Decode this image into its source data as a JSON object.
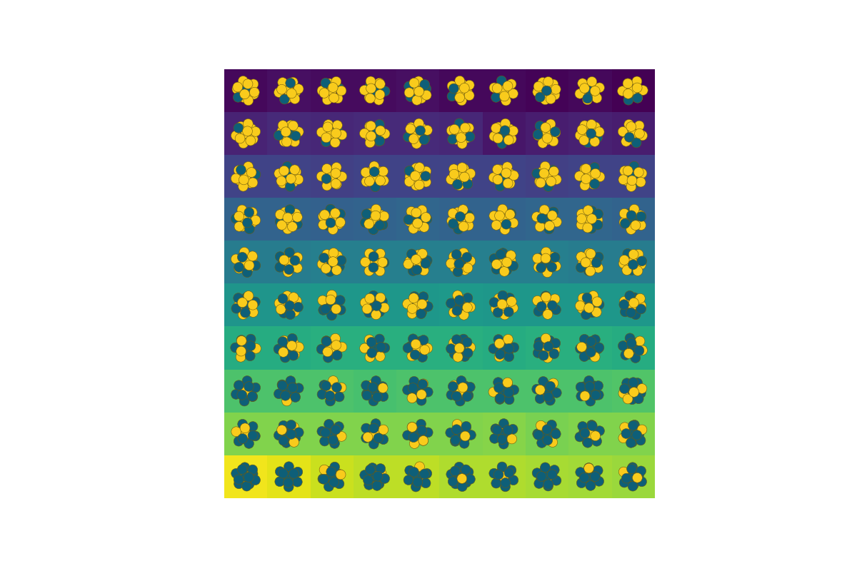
{
  "chart_data": {
    "type": "image_grid",
    "tick_labels": false,
    "value_range": [
      0,
      1
    ],
    "values": [
      [
        0.02,
        0.04,
        0.03,
        0.03,
        0.04,
        0.02,
        0.02,
        0.01,
        0.02,
        0.0
      ],
      [
        0.1,
        0.12,
        0.11,
        0.12,
        0.12,
        0.11,
        0.06,
        0.08,
        0.09,
        0.08
      ],
      [
        0.2,
        0.2,
        0.19,
        0.2,
        0.2,
        0.2,
        0.2,
        0.19,
        0.2,
        0.2
      ],
      [
        0.32,
        0.32,
        0.31,
        0.32,
        0.33,
        0.32,
        0.32,
        0.33,
        0.33,
        0.32
      ],
      [
        0.42,
        0.42,
        0.43,
        0.43,
        0.43,
        0.43,
        0.43,
        0.43,
        0.42,
        0.42
      ],
      [
        0.52,
        0.52,
        0.53,
        0.53,
        0.53,
        0.54,
        0.53,
        0.53,
        0.53,
        0.53
      ],
      [
        0.62,
        0.62,
        0.63,
        0.63,
        0.63,
        0.63,
        0.62,
        0.63,
        0.63,
        0.62
      ],
      [
        0.72,
        0.72,
        0.72,
        0.71,
        0.72,
        0.72,
        0.72,
        0.72,
        0.72,
        0.73
      ],
      [
        0.81,
        0.81,
        0.81,
        0.81,
        0.81,
        0.81,
        0.82,
        0.8,
        0.81,
        0.81
      ],
      [
        0.98,
        0.96,
        0.92,
        0.9,
        0.9,
        0.88,
        0.88,
        0.87,
        0.86,
        0.85
      ]
    ],
    "teal_counts": [
      [
        2,
        3,
        2,
        3,
        4,
        2,
        2,
        3,
        2,
        2
      ],
      [
        2,
        4,
        3,
        4,
        4,
        3,
        4,
        3,
        3,
        3
      ],
      [
        2,
        3,
        3,
        2,
        3,
        2,
        3,
        3,
        3,
        3
      ],
      [
        5,
        4,
        4,
        5,
        4,
        4,
        3,
        4,
        4,
        5
      ],
      [
        5,
        6,
        5,
        5,
        5,
        6,
        6,
        6,
        5,
        4
      ],
      [
        7,
        6,
        7,
        6,
        6,
        7,
        6,
        7,
        6,
        7
      ],
      [
        8,
        7,
        7,
        8,
        8,
        9,
        8,
        9,
        10,
        8
      ],
      [
        11,
        12,
        9,
        10,
        10,
        9,
        11,
        10,
        12,
        9
      ],
      [
        10,
        10,
        11,
        10,
        10,
        11,
        11,
        10,
        11,
        10
      ],
      [
        12,
        13,
        11,
        12,
        11,
        12,
        12,
        12,
        11,
        11
      ]
    ]
  }
}
